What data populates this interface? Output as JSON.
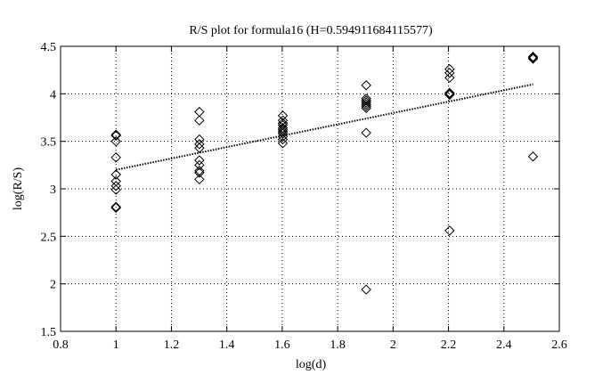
{
  "chart_data": {
    "type": "scatter",
    "title": "R/S plot for formula16 (H=0.594911684115577)",
    "xlabel": "log(d)",
    "ylabel": "log(R/S)",
    "xlim": [
      0.8,
      2.6
    ],
    "ylim": [
      1.5,
      4.5
    ],
    "xticks": [
      0.8,
      1,
      1.2,
      1.4,
      1.6,
      1.8,
      2,
      2.2,
      2.4,
      2.6
    ],
    "yticks": [
      1.5,
      2,
      2.5,
      3,
      3.5,
      4,
      4.5
    ],
    "xtick_labels": [
      "0.8",
      "1",
      "1.2",
      "1.4",
      "1.6",
      "1.8",
      "2",
      "2.2",
      "2.4",
      "2.6"
    ],
    "ytick_labels": [
      "1.5",
      "2",
      "2.5",
      "3",
      "3.5",
      "4",
      "4.5"
    ],
    "grid": true,
    "grid_style": "dotted",
    "marker": "diamond",
    "colors": {
      "marker": "#000000",
      "fit_line": "#000000",
      "grid": "#000000"
    },
    "series": [
      {
        "points": [
          [
            1.0,
            3.57
          ],
          [
            1.0,
            3.56
          ],
          [
            1.0,
            3.5
          ],
          [
            1.0,
            3.33
          ],
          [
            1.0,
            3.15
          ],
          [
            1.0,
            3.08
          ],
          [
            1.0,
            3.03
          ],
          [
            1.0,
            2.99
          ],
          [
            1.0,
            2.81
          ],
          [
            1.0,
            2.8
          ],
          [
            1.301,
            3.81
          ],
          [
            1.301,
            3.72
          ],
          [
            1.301,
            3.52
          ],
          [
            1.301,
            3.47
          ],
          [
            1.301,
            3.43
          ],
          [
            1.301,
            3.3
          ],
          [
            1.301,
            3.25
          ],
          [
            1.301,
            3.19
          ],
          [
            1.301,
            3.17
          ],
          [
            1.301,
            3.1
          ],
          [
            1.602,
            3.77
          ],
          [
            1.602,
            3.72
          ],
          [
            1.602,
            3.69
          ],
          [
            1.602,
            3.67
          ],
          [
            1.602,
            3.64
          ],
          [
            1.602,
            3.62
          ],
          [
            1.602,
            3.6
          ],
          [
            1.602,
            3.58
          ],
          [
            1.602,
            3.55
          ],
          [
            1.602,
            3.52
          ],
          [
            1.602,
            3.48
          ],
          [
            1.903,
            4.09
          ],
          [
            1.903,
            3.95
          ],
          [
            1.903,
            3.93
          ],
          [
            1.903,
            3.91
          ],
          [
            1.903,
            3.89
          ],
          [
            1.903,
            3.87
          ],
          [
            1.903,
            3.85
          ],
          [
            1.903,
            3.59
          ],
          [
            1.903,
            1.94
          ],
          [
            2.204,
            4.26
          ],
          [
            2.204,
            4.22
          ],
          [
            2.204,
            4.17
          ],
          [
            2.204,
            4.01
          ],
          [
            2.204,
            4.0
          ],
          [
            2.204,
            3.99
          ],
          [
            2.204,
            2.56
          ],
          [
            2.505,
            4.39
          ],
          [
            2.505,
            4.38
          ],
          [
            2.505,
            4.37
          ],
          [
            2.505,
            3.34
          ]
        ]
      },
      {
        "type": "line",
        "style": "dotted",
        "points": [
          [
            1.0,
            3.2
          ],
          [
            2.505,
            4.1
          ]
        ]
      }
    ]
  }
}
